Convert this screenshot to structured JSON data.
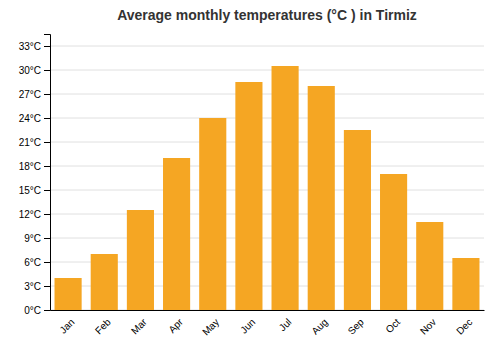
{
  "chart_data": {
    "type": "bar",
    "title": "Average monthly temperatures (°C ) in Tirmiz",
    "categories": [
      "Jan",
      "Feb",
      "Mar",
      "Apr",
      "May",
      "Jun",
      "Jul",
      "Aug",
      "Sep",
      "Oct",
      "Nov",
      "Dec"
    ],
    "values": [
      4.0,
      7.0,
      12.5,
      19.0,
      24.0,
      28.5,
      30.5,
      28.0,
      22.5,
      17.0,
      11.0,
      6.5
    ],
    "color": "#F5A623",
    "ylim": [
      0,
      34.5
    ],
    "yticks": [
      {
        "value": 0,
        "label": "0°C"
      },
      {
        "value": 3,
        "label": "3°C"
      },
      {
        "value": 6,
        "label": "6°C"
      },
      {
        "value": 9,
        "label": "9°C"
      },
      {
        "value": 12,
        "label": "12°C"
      },
      {
        "value": 15,
        "label": "15°C"
      },
      {
        "value": 18,
        "label": "18°C"
      },
      {
        "value": 21,
        "label": "21°C"
      },
      {
        "value": 24,
        "label": "24°C"
      },
      {
        "value": 27,
        "label": "27°C"
      },
      {
        "value": 30,
        "label": "30°C"
      },
      {
        "value": 33,
        "label": "33°C"
      }
    ],
    "grid": true
  }
}
